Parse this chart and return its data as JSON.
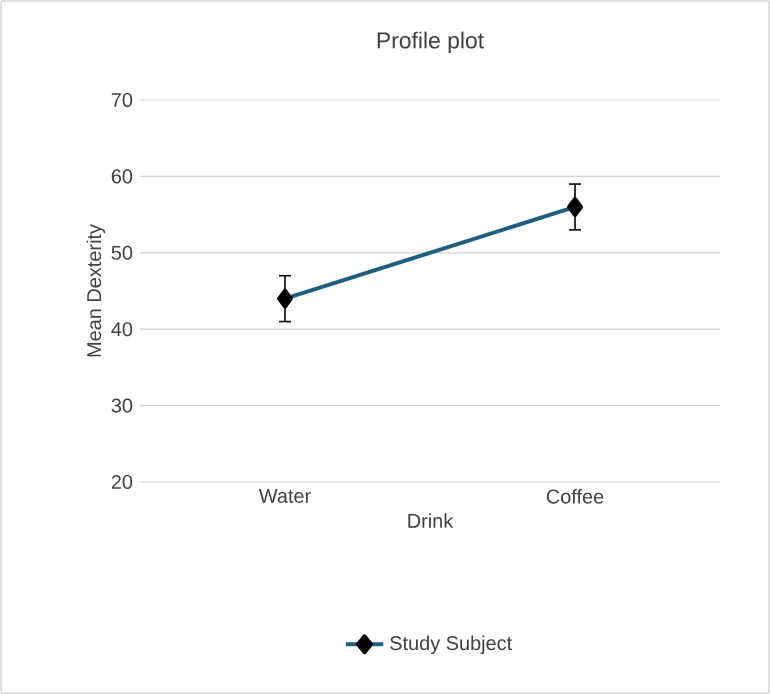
{
  "chart_data": {
    "type": "line",
    "title": "Profile plot",
    "xlabel": "Drink",
    "ylabel": "Mean Dexterity",
    "categories": [
      "Water",
      "Coffee"
    ],
    "series": [
      {
        "name": "Study Subject",
        "color": "#1f5f7d",
        "values": [
          44,
          56
        ],
        "errors": [
          3,
          3
        ]
      }
    ],
    "ylim": [
      20,
      70
    ],
    "yticks": [
      20,
      30,
      40,
      50,
      60,
      70
    ],
    "grid": "y",
    "legend": "bottom",
    "marker": "diamond",
    "line_style": "solid"
  }
}
